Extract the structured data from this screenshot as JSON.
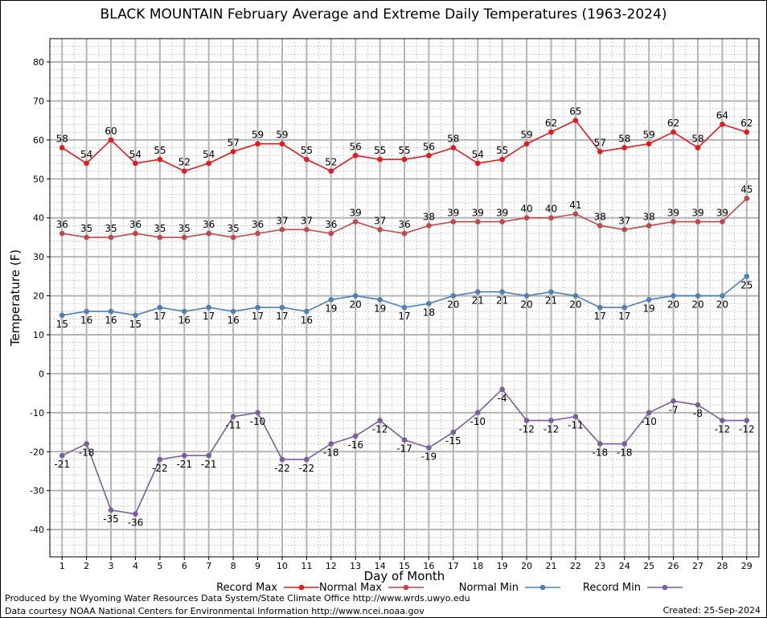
{
  "chart_data": {
    "type": "line",
    "title": "BLACK MOUNTAIN February Average and Extreme Daily Temperatures (1963-2024)",
    "xlabel": "Day of Month",
    "ylabel": "Temperature (F)",
    "ylim": [
      -47,
      86
    ],
    "yticks": [
      -40,
      -30,
      -20,
      -10,
      0,
      10,
      20,
      30,
      40,
      50,
      60,
      70,
      80
    ],
    "x": [
      1,
      2,
      3,
      4,
      5,
      6,
      7,
      8,
      9,
      10,
      11,
      12,
      13,
      14,
      15,
      16,
      17,
      18,
      19,
      20,
      21,
      22,
      23,
      24,
      25,
      26,
      27,
      28,
      29
    ],
    "grid": true,
    "legend_position": "bottom",
    "series": [
      {
        "name": "Record Max",
        "color": "#e8191c",
        "label_pos": "above",
        "values": [
          58,
          54,
          60,
          54,
          55,
          52,
          54,
          57,
          59,
          59,
          55,
          52,
          56,
          55,
          55,
          56,
          58,
          54,
          55,
          59,
          62,
          65,
          57,
          58,
          59,
          62,
          58,
          64,
          62
        ]
      },
      {
        "name": "Normal Max",
        "color": "#c04848",
        "label_pos": "above",
        "values": [
          36,
          35,
          35,
          36,
          35,
          35,
          36,
          35,
          36,
          37,
          37,
          36,
          39,
          37,
          36,
          38,
          39,
          39,
          39,
          40,
          40,
          41,
          38,
          37,
          38,
          39,
          39,
          39,
          45
        ]
      },
      {
        "name": "Normal Min",
        "color": "#4d80b5",
        "label_pos": "below",
        "values": [
          15,
          16,
          16,
          15,
          17,
          16,
          17,
          16,
          17,
          17,
          16,
          19,
          20,
          19,
          17,
          18,
          20,
          21,
          21,
          20,
          21,
          20,
          17,
          17,
          19,
          20,
          20,
          20,
          25
        ]
      },
      {
        "name": "Record Min",
        "color": "#7b5ea0",
        "label_pos": "below",
        "values": [
          -21,
          -18,
          -35,
          -36,
          -22,
          -21,
          -21,
          -11,
          -10,
          -22,
          -22,
          -18,
          -16,
          -12,
          -17,
          -19,
          -15,
          -10,
          -4,
          -12,
          -12,
          -11,
          -18,
          -18,
          -10,
          -7,
          -8,
          -12,
          -12
        ]
      }
    ]
  },
  "footer": {
    "line1": "Produced by the Wyoming Water Resources Data System/State Climate Office http://www.wrds.uwyo.edu",
    "line2": "Data courtesy NOAA National Centers for Environmental Information http://www.ncei.noaa.gov",
    "created": "Created:  25-Sep-2024"
  }
}
